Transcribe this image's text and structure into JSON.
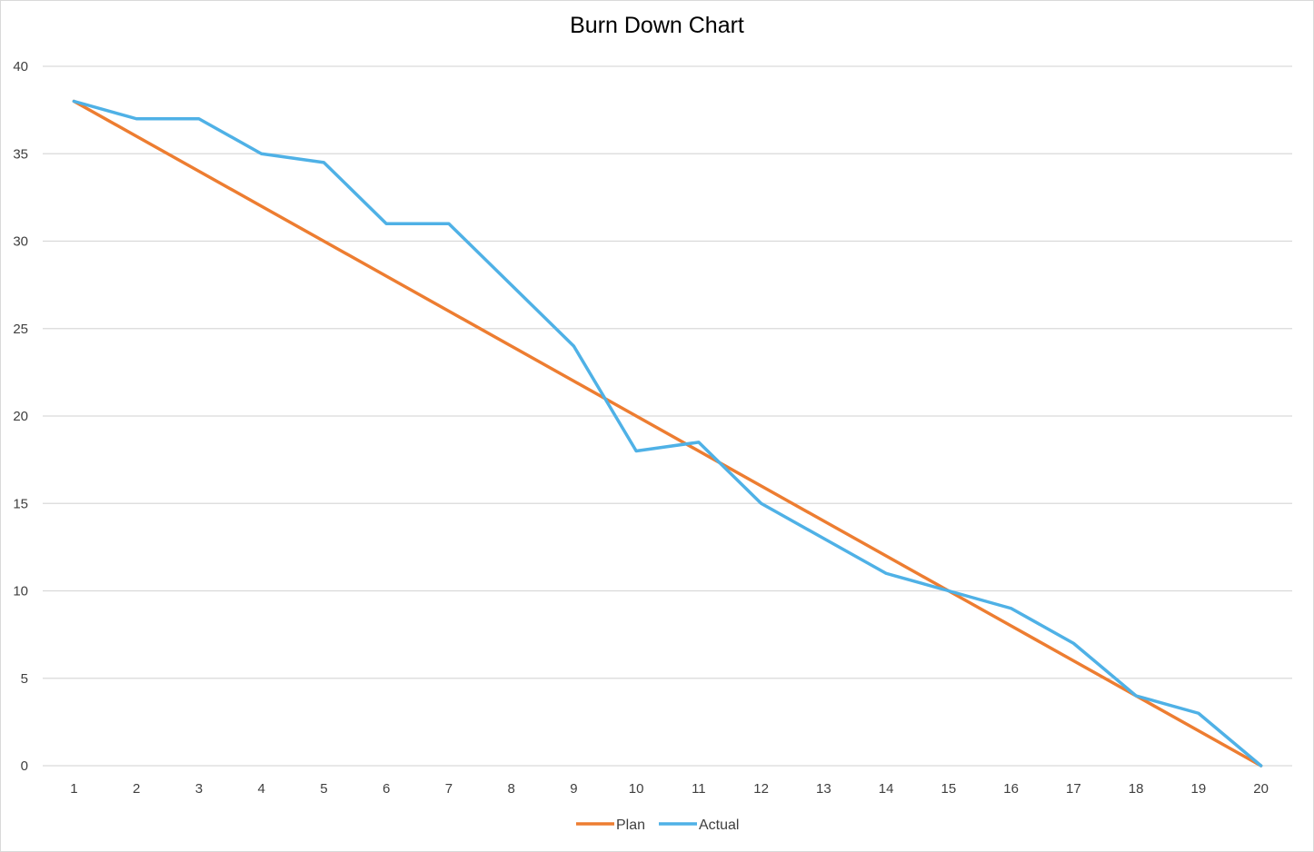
{
  "chart_data": {
    "type": "line",
    "title": "Burn Down Chart",
    "xlabel": "",
    "ylabel": "",
    "x": [
      1,
      2,
      3,
      4,
      5,
      6,
      7,
      8,
      9,
      10,
      11,
      12,
      13,
      14,
      15,
      16,
      17,
      18,
      19,
      20
    ],
    "x_tick_labels": [
      "1",
      "2",
      "3",
      "4",
      "5",
      "6",
      "7",
      "8",
      "9",
      "10",
      "11",
      "12",
      "13",
      "14",
      "15",
      "16",
      "17",
      "18",
      "19",
      "20"
    ],
    "ylim": [
      0,
      40
    ],
    "y_ticks": [
      0,
      5,
      10,
      15,
      20,
      25,
      30,
      35,
      40
    ],
    "y_tick_labels": [
      "0",
      "5",
      "10",
      "15",
      "20",
      "25",
      "30",
      "35",
      "40"
    ],
    "grid": true,
    "legend_position": "bottom",
    "series": [
      {
        "name": "Plan",
        "color": "#ED7D31",
        "values": [
          38,
          36,
          34,
          32,
          30,
          28,
          26,
          24,
          22,
          20,
          18,
          16,
          14,
          12,
          10,
          8,
          6,
          4,
          2,
          0
        ]
      },
      {
        "name": "Actual",
        "color": "#4FB1E6",
        "values": [
          38,
          37,
          37,
          35,
          34.5,
          31,
          31,
          27.5,
          24,
          18,
          18.5,
          15,
          13,
          11,
          10,
          9,
          7,
          4,
          3,
          0
        ]
      }
    ]
  }
}
